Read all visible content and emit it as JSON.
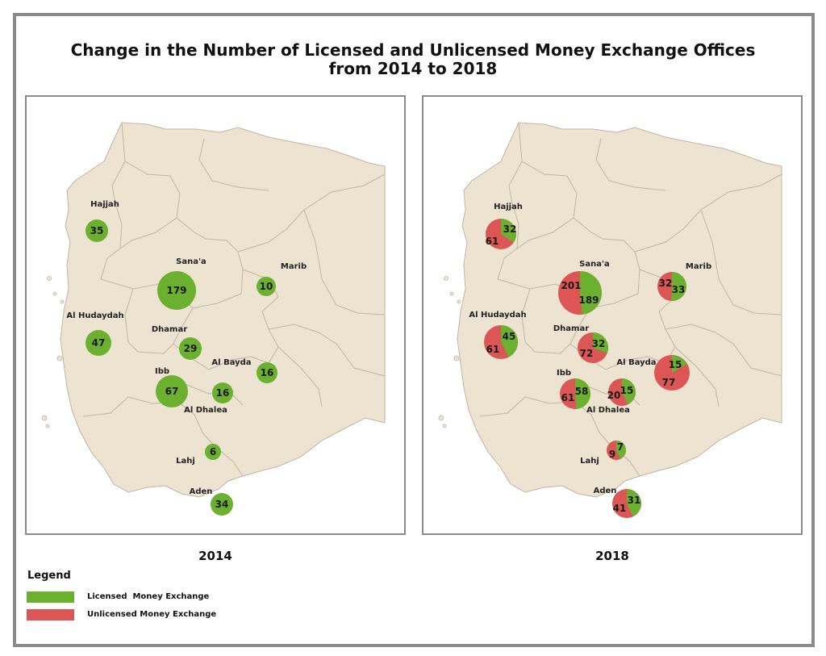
{
  "title_line1": "Change in the Number of Licensed and Unlicensed Money Exchange Offices",
  "title_line2": "from 2014 to 2018",
  "colors": {
    "licensed": "#6cb02f",
    "unlicensed": "#dd5656",
    "land": "#ece3d0",
    "border": "#bfb6a6"
  },
  "map2014": {
    "year": "2014",
    "regions": [
      {
        "name": "Hajjah",
        "licensed": "35"
      },
      {
        "name": "Sana'a",
        "licensed": "179"
      },
      {
        "name": "Marib",
        "licensed": "10"
      },
      {
        "name": "Al Hudaydah",
        "licensed": "47"
      },
      {
        "name": "Dhamar",
        "licensed": "29"
      },
      {
        "name": "Al Bayda",
        "licensed": "16"
      },
      {
        "name": "Ibb",
        "licensed": "67"
      },
      {
        "name": "",
        "licensed": "16"
      },
      {
        "name": "Al Dhalea",
        "licensed": ""
      },
      {
        "name": "Lahj",
        "licensed": "6"
      },
      {
        "name": "Aden",
        "licensed": "34"
      }
    ]
  },
  "map2018": {
    "year": "2018",
    "regions": [
      {
        "name": "Hajjah",
        "licensed": "32",
        "unlicensed": "61"
      },
      {
        "name": "Sana'a",
        "licensed": "189",
        "unlicensed": "201"
      },
      {
        "name": "Marib",
        "licensed": "33",
        "unlicensed": "32"
      },
      {
        "name": "Al Hudaydah",
        "licensed": "45",
        "unlicensed": "61"
      },
      {
        "name": "Dhamar",
        "licensed": "32",
        "unlicensed": "72"
      },
      {
        "name": "Al Bayda",
        "licensed": "15",
        "unlicensed": "77"
      },
      {
        "name": "Ibb",
        "licensed": "58",
        "unlicensed": "61"
      },
      {
        "name": "",
        "licensed": "15",
        "unlicensed": "20"
      },
      {
        "name": "Al Dhalea",
        "licensed": "",
        "unlicensed": ""
      },
      {
        "name": "Lahj",
        "licensed": "7",
        "unlicensed": "9"
      },
      {
        "name": "Aden",
        "licensed": "31",
        "unlicensed": "41"
      }
    ]
  },
  "legend": {
    "title": "Legend",
    "licensed_label": "Licensed  Money Exchange",
    "unlicensed_label": "Unlicensed Money Exchange"
  }
}
